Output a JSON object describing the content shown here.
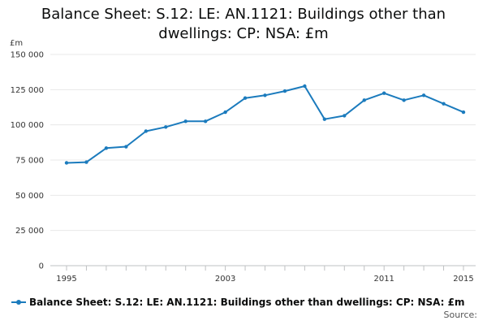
{
  "chart_data": {
    "type": "line",
    "title": "Balance Sheet: S.12: LE: AN.1121: Buildings other than dwellings: CP: NSA: £m",
    "title_lines": [
      "Balance Sheet: S.12: LE: AN.1121: Buildings other than",
      "dwellings: CP: NSA: £m"
    ],
    "ylabel": "£m",
    "xlabel": "",
    "ylim": [
      0,
      150000
    ],
    "yticks": [
      0,
      25000,
      50000,
      75000,
      100000,
      125000,
      150000
    ],
    "ytick_labels": [
      "0",
      "25 000",
      "50 000",
      "75 000",
      "100 000",
      "125 000",
      "150 000"
    ],
    "xlim": [
      1995,
      2015
    ],
    "xtick_labels": [
      {
        "x": 1995,
        "label": "1995"
      },
      {
        "x": 2003,
        "label": "2003"
      },
      {
        "x": 2011,
        "label": "2011"
      },
      {
        "x": 2015,
        "label": "2015"
      }
    ],
    "grid": true,
    "series": [
      {
        "name": "Balance Sheet: S.12: LE: AN.1121: Buildings other than dwellings: CP: NSA: £m",
        "color": "#1b7bbd",
        "x": [
          1995,
          1996,
          1997,
          1998,
          1999,
          2000,
          2001,
          2002,
          2003,
          2004,
          2005,
          2006,
          2007,
          2008,
          2009,
          2010,
          2011,
          2012,
          2013,
          2014,
          2015
        ],
        "values": [
          73000,
          73500,
          83500,
          84500,
          95500,
          98500,
          102500,
          102500,
          109000,
          119000,
          121000,
          124000,
          127500,
          104000,
          106500,
          117500,
          122500,
          117500,
          121000,
          115000,
          109000
        ]
      }
    ]
  },
  "legend": {
    "label": "Balance Sheet: S.12: LE: AN.1121: Buildings other than dwellings: CP: NSA: £m"
  },
  "source_label": "Source:"
}
